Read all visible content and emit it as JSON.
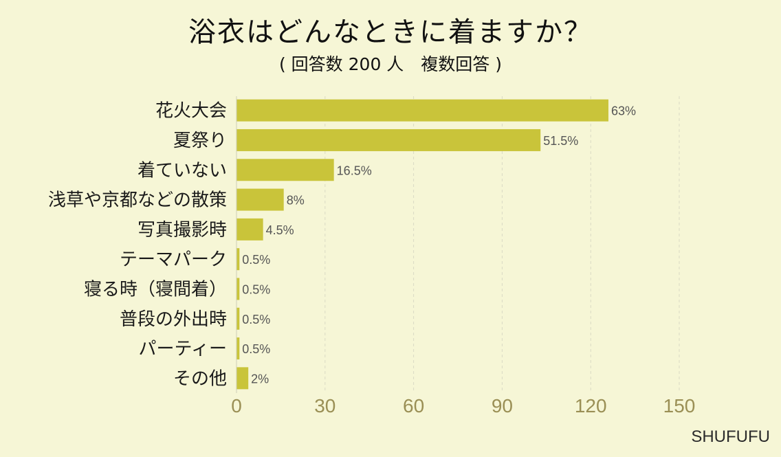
{
  "title": "浴衣はどんなときに着ますか？",
  "subtitle": "( 回答数 200 人　複数回答 )",
  "brand": "SHUFUFU",
  "colors": {
    "bar": "#c9c43a",
    "background": "#f6f6d6",
    "grid": "#d9d9c4",
    "tick": "#9a8f55"
  },
  "chart_data": {
    "type": "bar",
    "orientation": "horizontal",
    "title": "浴衣はどんなときに着ますか？",
    "subtitle": "( 回答数 200 人　複数回答 )",
    "categories": [
      "花火大会",
      "夏祭り",
      "着ていない",
      "浅草や京都などの散策",
      "写真撮影時",
      "テーマパーク",
      "寝る時（寝間着）",
      "普段の外出時",
      "パーティー",
      "その他"
    ],
    "values": [
      126,
      103,
      33,
      16,
      9,
      1,
      1,
      1,
      1,
      4
    ],
    "data_labels": [
      "63%",
      "51.5%",
      "16.5%",
      "8%",
      "4.5%",
      "0.5%",
      "0.5%",
      "0.5%",
      "0.5%",
      "2%"
    ],
    "x_ticks": [
      0,
      30,
      60,
      90,
      120,
      150
    ],
    "xlim": [
      0,
      150
    ],
    "grid": "vertical dashed"
  }
}
